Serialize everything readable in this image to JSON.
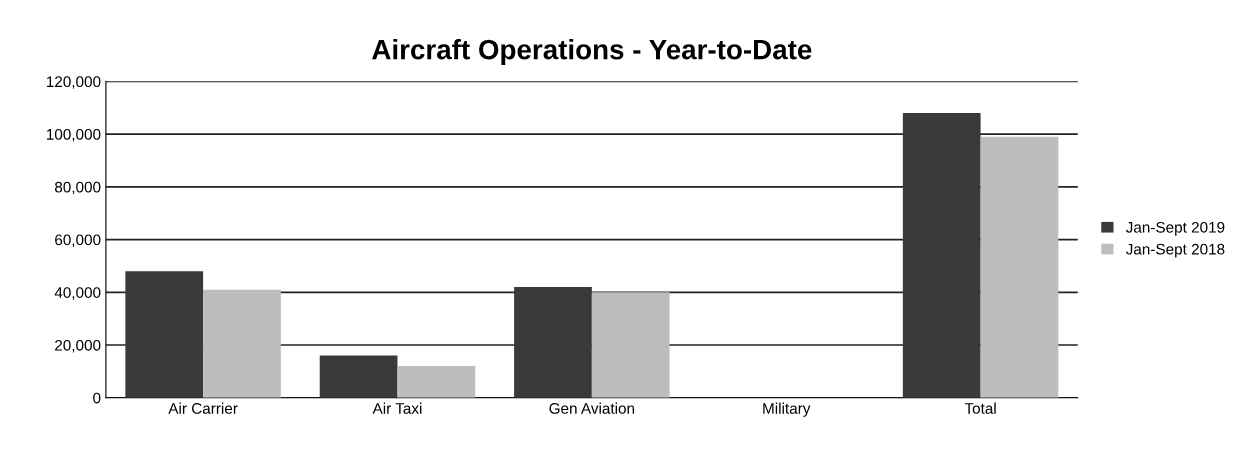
{
  "chart_data": {
    "type": "bar",
    "title": "Aircraft Operations - Year-to-Date",
    "categories": [
      "Air Carrier",
      "Air Taxi",
      "Gen Aviation",
      "Military",
      "Total"
    ],
    "series": [
      {
        "name": "Jan-Sept 2019",
        "color": "#3a3a3a",
        "values": [
          48000,
          16000,
          42000,
          0,
          108000
        ]
      },
      {
        "name": "Jan-Sept 2018",
        "color": "#bdbdbd",
        "values": [
          41000,
          12000,
          40000,
          0,
          99000
        ]
      }
    ],
    "ylim": [
      0,
      120000
    ],
    "yticks": [
      {
        "value": 0,
        "label": "0"
      },
      {
        "value": 20000,
        "label": "20,000"
      },
      {
        "value": 40000,
        "label": "40,000"
      },
      {
        "value": 60000,
        "label": "60,000"
      },
      {
        "value": 80000,
        "label": "80,000"
      },
      {
        "value": 100000,
        "label": "100,000"
      },
      {
        "value": 120000,
        "label": "120,000"
      }
    ],
    "grid": "y",
    "legend": "right"
  }
}
